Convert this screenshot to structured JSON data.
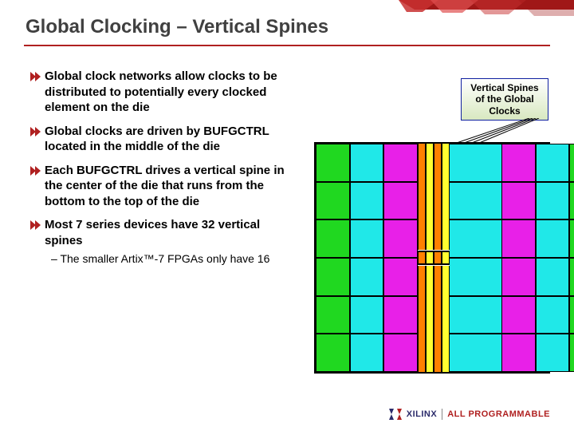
{
  "title": "Global Clocking – Vertical Spines",
  "bullets": [
    "Global clock networks allow clocks to be distributed to potentially every clocked element on the die",
    "Global clocks are driven by BUFGCTRL located in the middle of the die",
    "Each BUFGCTRL drives a vertical spine in the center of the die that runs from the bottom to the top of the die",
    "Most 7 series devices have 32 vertical spines"
  ],
  "sub_bullet": "The smaller Artix™-7 FPGAs only have 16",
  "label_line1": "Vertical Spines",
  "label_line2": "of the Global",
  "label_line3": "Clocks",
  "footer_brand": "XILINX",
  "footer_tag": "ALL PROGRAMMABLE",
  "colors": {
    "accent_red": "#b02020",
    "die_cyan": "#20e8e8",
    "die_green": "#20d820",
    "die_magenta": "#e820e8",
    "spine_orange": "#ff8000",
    "spine_yellow": "#ffff30",
    "label_border": "#1020a0"
  },
  "diagram": {
    "rows": 6,
    "wide_col_colors": [
      "#20d820",
      "#20e8e8",
      "#e820e8",
      "#e820e8",
      "#20e8e8",
      "#20d820"
    ],
    "thin_col_color": "#20e8e8",
    "spines": 4,
    "bufgctrl_row_center": true
  }
}
